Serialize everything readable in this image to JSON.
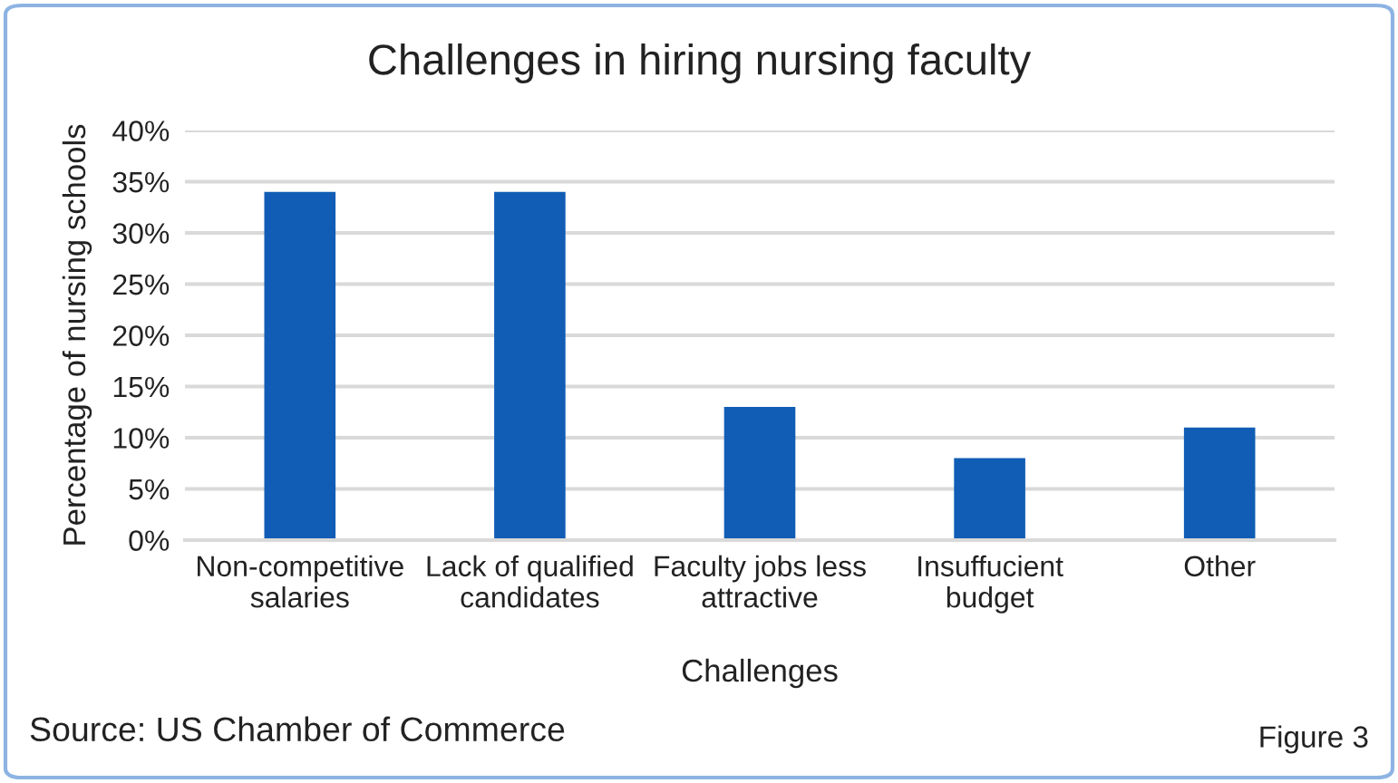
{
  "chart_data": {
    "type": "bar",
    "title": "Challenges in hiring nursing faculty",
    "categories": [
      "Non-competitive\nsalaries",
      "Lack of qualified\ncandidates",
      "Faculty jobs less\nattractive",
      "Insuffucient\nbudget",
      "Other"
    ],
    "values": [
      34,
      34,
      13,
      8,
      11
    ],
    "color": "#115db5",
    "xlabel": "Challenges",
    "ylabel": "Percentage of nursing schools",
    "ylim": [
      0,
      40
    ],
    "yticks": [
      {
        "value": 0,
        "label": "0%"
      },
      {
        "value": 5,
        "label": "5%"
      },
      {
        "value": 10,
        "label": "10%"
      },
      {
        "value": 15,
        "label": "15%"
      },
      {
        "value": 20,
        "label": "20%"
      },
      {
        "value": 25,
        "label": "25%"
      },
      {
        "value": 30,
        "label": "30%"
      },
      {
        "value": 35,
        "label": "35%"
      },
      {
        "value": 40,
        "label": "40%"
      }
    ],
    "grid": "y",
    "annotations": [
      "Source: US Chamber of Commerce",
      "Figure 3"
    ]
  }
}
